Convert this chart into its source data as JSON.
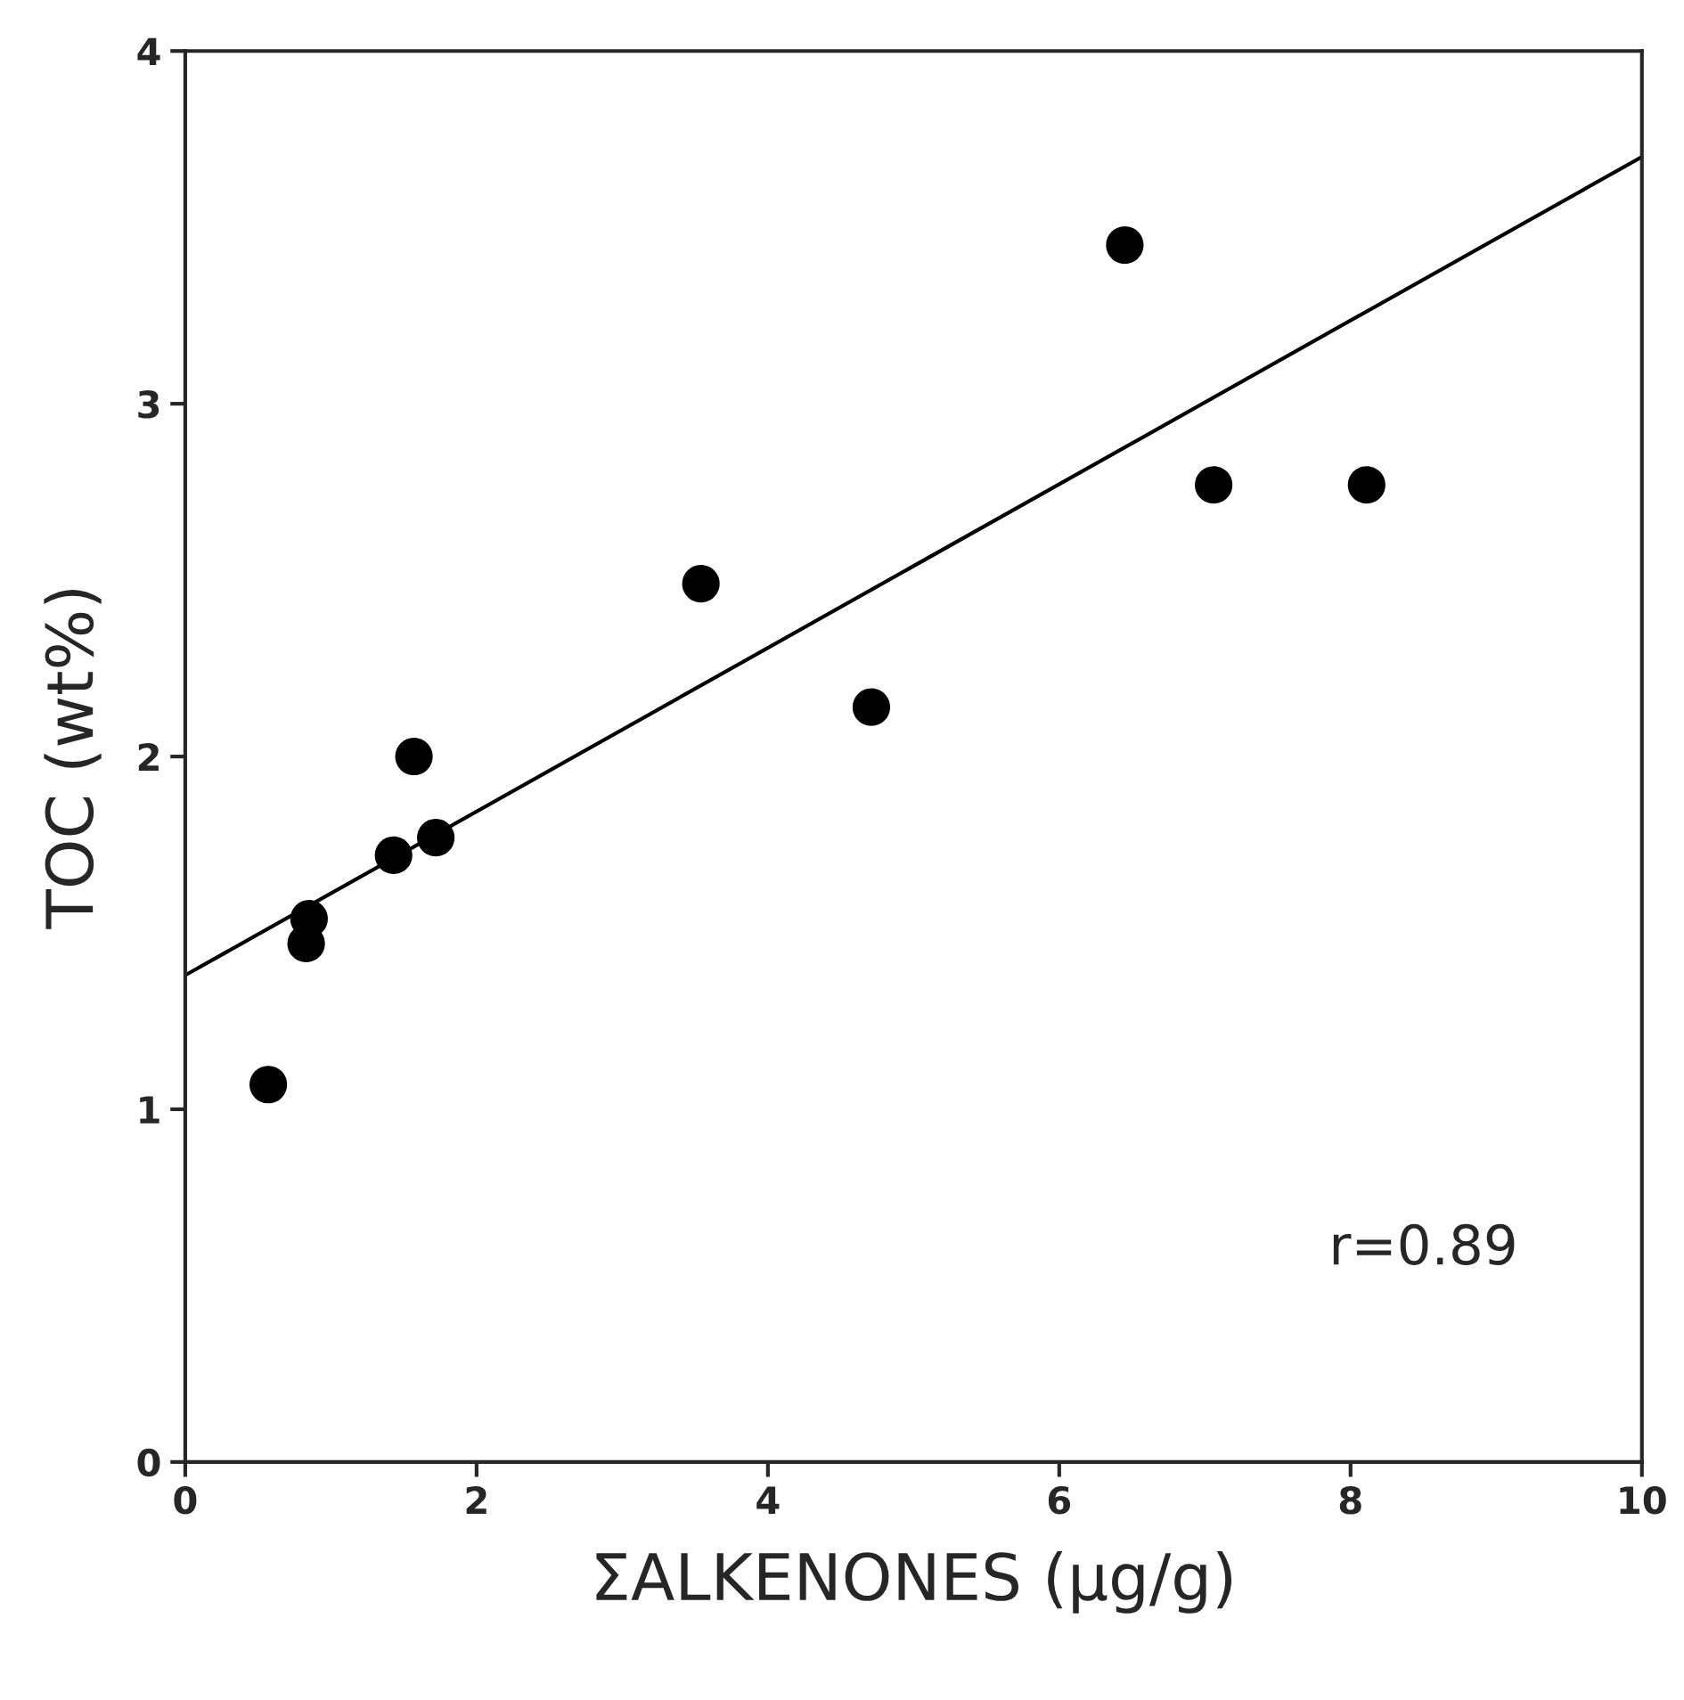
{
  "chart_data": {
    "type": "scatter",
    "xlabel": "ΣALKENONES (μg/g)",
    "ylabel": "TOC (wt%)",
    "x": [
      0.57,
      0.83,
      0.85,
      1.43,
      1.57,
      1.72,
      3.54,
      4.71,
      6.45,
      7.06,
      8.11
    ],
    "series": [
      {
        "type": "scatter",
        "color": "#000000",
        "marker": "circle",
        "values": [
          1.07,
          1.47,
          1.54,
          1.72,
          2.0,
          1.77,
          2.49,
          2.14,
          3.45,
          2.77,
          2.77
        ]
      },
      {
        "type": "line",
        "color": "#000000",
        "marker": "none",
        "line_style": "solid",
        "x": [
          0,
          10
        ],
        "values": [
          1.38,
          3.7
        ]
      }
    ],
    "xlim": [
      0,
      10
    ],
    "ylim": [
      0,
      4
    ],
    "xticks": [
      0,
      2,
      4,
      6,
      8,
      10
    ],
    "yticks": [
      0,
      1,
      2,
      3,
      4
    ],
    "grid": false,
    "legend": false,
    "annotations": [
      "r=0.89"
    ]
  }
}
